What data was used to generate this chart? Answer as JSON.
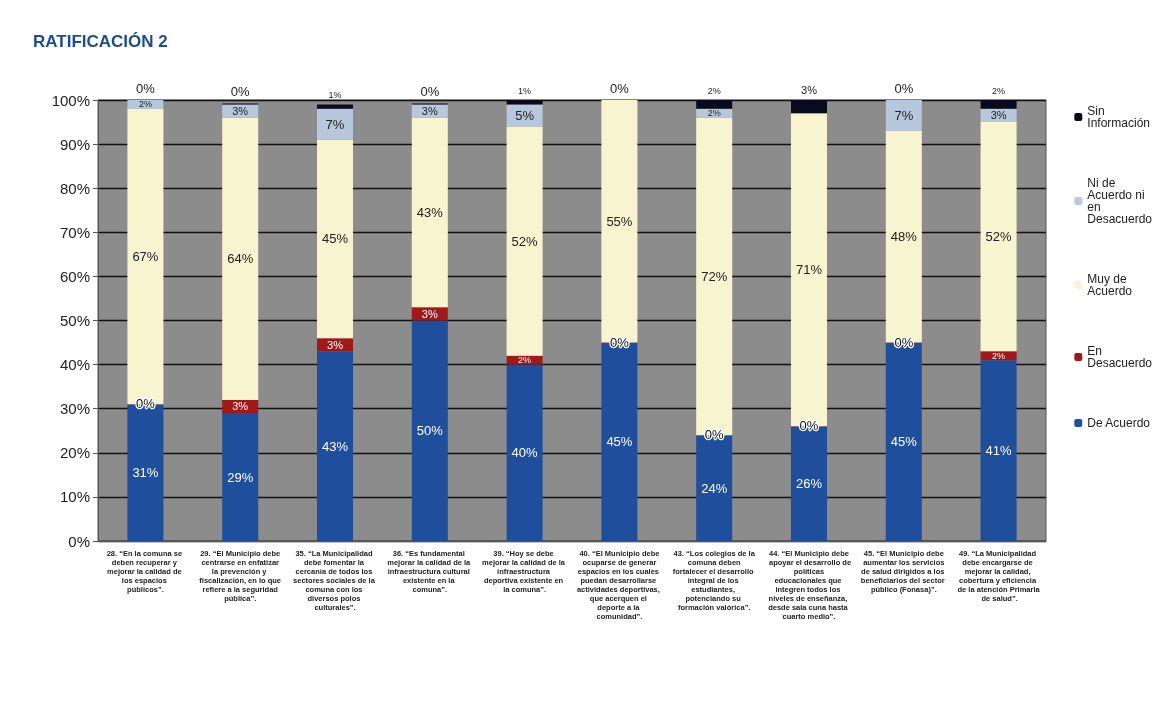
{
  "chart_data": {
    "type": "bar",
    "title": "RATIFICACIÓN 2",
    "stacked": true,
    "categories": [
      "28. “En la comuna se deben recuperar y mejorar la calidad de los espacios públicos”.",
      "29. “El Municipio debe centrarse en enfatizar la prevención y fiscalización, en lo que refiere a la seguridad pública”.",
      "35. “La Municipalidad debe fomentar la cercanía de todos los sectores sociales de la comuna con los diversos polos culturales”.",
      "36. “Es fundamental mejorar la calidad de la infraestructura cultural existente en la comuna”.",
      "39. “Hoy se debe mejorar la calidad de la infraestructura deportiva existente en la comuna”.",
      "40. “El Municipio debe ocuparse de generar espacios en los cuales puedan desarrollarse actividades deportivas, que acerquen el deporte a la comunidad”.",
      "43. “Los colegios de la comuna deben fortalecer el desarrollo integral de los estudiantes, potenciando su formación valórica”.",
      "44. “El Municipio debe apoyar el desarrollo de políticas educacionales que integren todos los niveles de enseñanza, desde sala cuna hasta cuarto medio”.",
      "45. “El Municipio debe aumentar los servicios de salud dirigidos a los beneficiarios del sector público (Fonasa)”.",
      "49. “La Municipalidad debe encargarse de mejorar la calidad, cobertura y eficiencia de la atención Primaria de salud”."
    ],
    "series": [
      {
        "name": "De Acuerdo",
        "color": "#1f4e9c",
        "values": [
          31,
          29,
          43,
          50,
          40,
          45,
          24,
          26,
          45,
          41
        ],
        "value_labels": [
          "31%",
          "29%",
          "43%",
          "50%",
          "40%",
          "45%",
          "24%",
          "26%",
          "45%",
          "41%"
        ]
      },
      {
        "name": "En Desacuerdo",
        "color": "#a01818",
        "values": [
          0,
          3,
          3,
          3,
          2,
          0,
          0,
          0,
          0,
          2
        ],
        "value_labels": [
          "0%",
          "3%",
          "3%",
          "3%",
          "2%",
          "0%",
          "0%",
          "0%",
          "0%",
          "2%"
        ]
      },
      {
        "name": "Muy de Acuerdo",
        "color": "#f8f4d0",
        "values": [
          67,
          64,
          45,
          43,
          52,
          55,
          72,
          71,
          48,
          52
        ],
        "value_labels": [
          "67%",
          "64%",
          "45%",
          "43%",
          "52%",
          "55%",
          "72%",
          "71%",
          "48%",
          "52%"
        ]
      },
      {
        "name": "Ni de Acuerdo ni en Desacuerdo",
        "color": "#b8c8dc",
        "values": [
          2,
          3,
          7,
          3,
          5,
          0,
          2,
          0,
          7,
          3
        ],
        "value_labels": [
          "2%",
          "3%",
          "7%",
          "3%",
          "5%",
          null,
          "2%",
          null,
          "7%",
          "3%"
        ]
      },
      {
        "name": "Sin Información",
        "color": "#0a0a1e",
        "values": [
          0,
          0,
          1,
          0,
          1,
          0,
          2,
          3,
          0,
          2
        ],
        "value_labels": [
          "0%",
          "0%",
          "1%",
          "0%",
          "1%",
          "0%",
          "2%",
          "3%",
          "0%",
          "2%"
        ]
      }
    ],
    "ylim": [
      0,
      100
    ],
    "yticks": [
      {
        "value": 0,
        "label": "0%"
      },
      {
        "value": 10,
        "label": "10%"
      },
      {
        "value": 20,
        "label": "20%"
      },
      {
        "value": 30,
        "label": "30%"
      },
      {
        "value": 40,
        "label": "40%"
      },
      {
        "value": 50,
        "label": "50%"
      },
      {
        "value": 60,
        "label": "60%"
      },
      {
        "value": 70,
        "label": "70%"
      },
      {
        "value": 80,
        "label": "80%"
      },
      {
        "value": 90,
        "label": "90%"
      },
      {
        "value": 100,
        "label": "100%"
      }
    ],
    "grid": "y",
    "legend": "right"
  }
}
